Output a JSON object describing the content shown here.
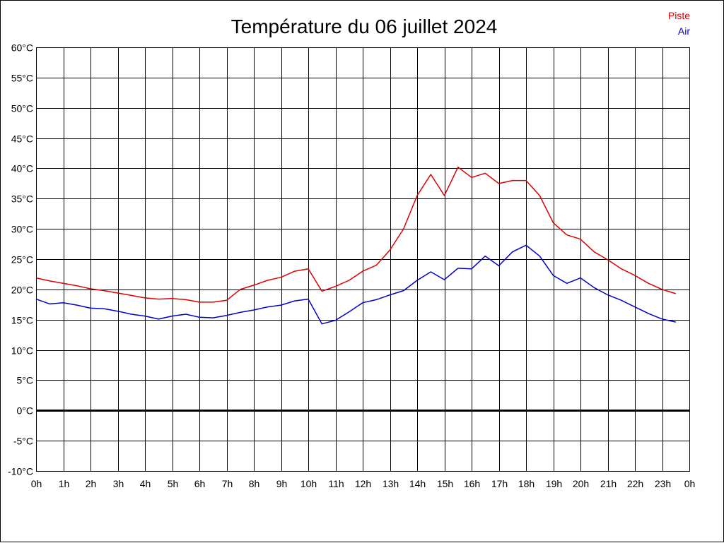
{
  "chart_data": {
    "type": "line",
    "title": "Température du 06 juillet 2024",
    "xlabel": "",
    "ylabel": "",
    "ylim": [
      -10,
      60
    ],
    "xlim": [
      0,
      24
    ],
    "grid": true,
    "zero_line": true,
    "legend_position": "top-right",
    "y_ticks": [
      -10,
      -5,
      0,
      5,
      10,
      15,
      20,
      25,
      30,
      35,
      40,
      45,
      50,
      55,
      60
    ],
    "y_tick_labels": [
      "-10°C",
      "-5°C",
      "0°C",
      "5°C",
      "10°C",
      "15°C",
      "20°C",
      "25°C",
      "30°C",
      "35°C",
      "40°C",
      "45°C",
      "50°C",
      "55°C",
      "60°C"
    ],
    "x_ticks": [
      0,
      1,
      2,
      3,
      4,
      5,
      6,
      7,
      8,
      9,
      10,
      11,
      12,
      13,
      14,
      15,
      16,
      17,
      18,
      19,
      20,
      21,
      22,
      23,
      24
    ],
    "x_tick_labels": [
      "0h",
      "1h",
      "2h",
      "3h",
      "4h",
      "5h",
      "6h",
      "7h",
      "8h",
      "9h",
      "10h",
      "11h",
      "12h",
      "13h",
      "14h",
      "15h",
      "16h",
      "17h",
      "18h",
      "19h",
      "20h",
      "21h",
      "22h",
      "23h",
      "0h"
    ],
    "x": [
      0,
      0.5,
      1,
      1.5,
      2,
      2.5,
      3,
      3.5,
      4,
      4.5,
      5,
      5.5,
      6,
      6.5,
      7,
      7.5,
      8,
      8.5,
      9,
      9.5,
      10,
      10.5,
      11,
      11.5,
      12,
      12.5,
      13,
      13.5,
      14,
      14.5,
      15,
      15.5,
      16,
      16.5,
      17,
      17.5,
      18,
      18.5,
      19,
      19.5,
      20,
      20.5,
      21,
      21.5,
      22,
      22.5,
      23,
      23.5
    ],
    "series": [
      {
        "name": "Piste",
        "color": "#dd0000",
        "values": [
          21.9,
          21.4,
          21.0,
          20.6,
          20.1,
          19.8,
          19.4,
          19.0,
          18.6,
          18.4,
          18.5,
          18.3,
          17.9,
          17.9,
          18.2,
          20.0,
          20.7,
          21.5,
          22.0,
          23.0,
          23.4,
          19.7,
          20.5,
          21.5,
          23.0,
          24.0,
          26.5,
          30.0,
          35.5,
          39.0,
          35.5,
          40.2,
          38.5,
          39.2,
          37.5,
          38.0,
          38.0,
          35.5,
          31.0,
          29.0,
          28.3,
          26.2,
          24.9,
          23.4,
          22.3,
          21.0,
          20.0,
          19.3
        ]
      },
      {
        "name": "Air",
        "color": "#0000cc",
        "values": [
          18.4,
          17.6,
          17.8,
          17.4,
          16.9,
          16.8,
          16.4,
          15.9,
          15.6,
          15.1,
          15.6,
          15.9,
          15.4,
          15.3,
          15.7,
          16.2,
          16.6,
          17.1,
          17.4,
          18.1,
          18.4,
          14.3,
          14.9,
          16.3,
          17.8,
          18.3,
          19.1,
          19.8,
          21.5,
          22.9,
          21.6,
          23.5,
          23.4,
          25.5,
          23.9,
          26.2,
          27.3,
          25.5,
          22.3,
          21.0,
          21.9,
          20.3,
          19.1,
          18.2,
          17.1,
          16.0,
          15.1,
          14.6
        ]
      }
    ]
  }
}
